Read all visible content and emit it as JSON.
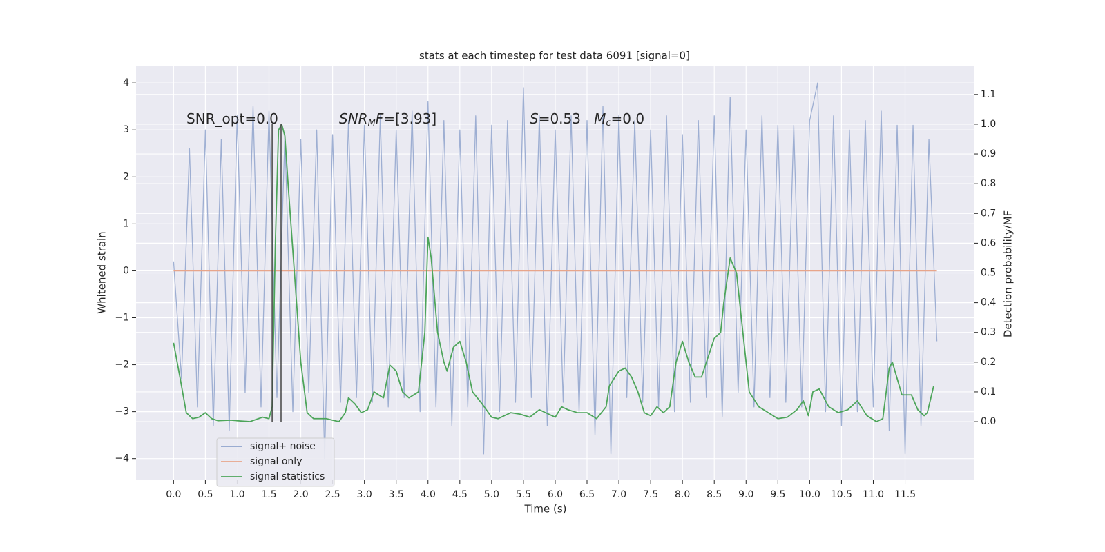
{
  "chart_data": {
    "type": "line",
    "title": "stats at each timestep for test data 6091 [signal=0]",
    "xlabel": "Time (s)",
    "ylabel": "Whitened strain",
    "y2label": "Detection probability/MF",
    "xlim": [
      -0.59,
      12.58
    ],
    "ylim": [
      -4.46,
      4.37
    ],
    "y2lim": [
      -0.197,
      1.197
    ],
    "grid": true,
    "background": "#eaeaf2",
    "legend": "lower left",
    "xticks": [
      {
        "value": 0.0,
        "label": "0.0"
      },
      {
        "value": 0.5,
        "label": "0.5"
      },
      {
        "value": 1.0,
        "label": "1.0"
      },
      {
        "value": 1.5,
        "label": "1.5"
      },
      {
        "value": 2.0,
        "label": "2.0"
      },
      {
        "value": 2.5,
        "label": "2.5"
      },
      {
        "value": 3.0,
        "label": "3.0"
      },
      {
        "value": 3.5,
        "label": "3.5"
      },
      {
        "value": 4.0,
        "label": "4.0"
      },
      {
        "value": 4.5,
        "label": "4.5"
      },
      {
        "value": 5.0,
        "label": "5.0"
      },
      {
        "value": 5.5,
        "label": "5.5"
      },
      {
        "value": 6.0,
        "label": "6.0"
      },
      {
        "value": 6.5,
        "label": "6.5"
      },
      {
        "value": 7.0,
        "label": "7.0"
      },
      {
        "value": 7.5,
        "label": "7.5"
      },
      {
        "value": 8.0,
        "label": "8.0"
      },
      {
        "value": 8.5,
        "label": "8.5"
      },
      {
        "value": 9.0,
        "label": "9.0"
      },
      {
        "value": 9.5,
        "label": "9.5"
      },
      {
        "value": 10.0,
        "label": "10.0"
      },
      {
        "value": 10.5,
        "label": "10.5"
      },
      {
        "value": 11.0,
        "label": "11.0"
      },
      {
        "value": 11.5,
        "label": "11.5"
      }
    ],
    "yticks": [
      {
        "value": -4,
        "label": "−4"
      },
      {
        "value": -3,
        "label": "−3"
      },
      {
        "value": -2,
        "label": "−2"
      },
      {
        "value": -1,
        "label": "−1"
      },
      0,
      1,
      2,
      3,
      4
    ],
    "y2ticks": [
      {
        "value": 0.0,
        "label": "0.0"
      },
      {
        "value": 0.1,
        "label": "0.1"
      },
      {
        "value": 0.2,
        "label": "0.2"
      },
      {
        "value": 0.3,
        "label": "0.3"
      },
      {
        "value": 0.4,
        "label": "0.4"
      },
      {
        "value": 0.5,
        "label": "0.5"
      },
      {
        "value": 0.6,
        "label": "0.6"
      },
      {
        "value": 0.7,
        "label": "0.7"
      },
      {
        "value": 0.8,
        "label": "0.8"
      },
      {
        "value": 0.9,
        "label": "0.9"
      },
      {
        "value": 1.0,
        "label": "1.0"
      },
      {
        "value": 1.1,
        "label": "1.1"
      }
    ],
    "series": [
      {
        "name": "signal+ noise",
        "color": "#8fa3cc",
        "width": 1.3,
        "x": [
          0,
          0.125,
          0.25,
          0.375,
          0.5,
          0.625,
          0.75,
          0.875,
          1,
          1.125,
          1.25,
          1.375,
          1.5,
          1.625,
          1.75,
          1.875,
          2,
          2.125,
          2.25,
          2.375,
          2.5,
          2.625,
          2.75,
          2.875,
          3,
          3.125,
          3.25,
          3.375,
          3.5,
          3.625,
          3.75,
          3.875,
          4,
          4.125,
          4.25,
          4.375,
          4.5,
          4.625,
          4.75,
          4.875,
          5,
          5.125,
          5.25,
          5.375,
          5.5,
          5.625,
          5.75,
          5.875,
          6,
          6.125,
          6.25,
          6.375,
          6.5,
          6.625,
          6.75,
          6.875,
          7,
          7.125,
          7.25,
          7.375,
          7.5,
          7.625,
          7.75,
          7.875,
          8,
          8.125,
          8.25,
          8.375,
          8.5,
          8.625,
          8.75,
          8.875,
          9,
          9.125,
          9.25,
          9.375,
          9.5,
          9.625,
          9.75,
          9.875,
          10,
          10.125,
          10.25,
          10.375,
          10.5,
          10.625,
          10.75,
          10.875,
          11,
          11.125,
          11.25,
          11.375,
          11.5,
          11.625,
          11.75,
          11.875,
          12
        ],
        "values": [
          0.2,
          -2.3,
          2.6,
          -2.9,
          3.0,
          -3.3,
          2.8,
          -3.4,
          3.3,
          -2.6,
          3.5,
          -2.9,
          3.4,
          -2.7,
          2.9,
          -3.0,
          2.8,
          -2.6,
          3.0,
          -4.0,
          2.9,
          -2.8,
          3.2,
          -2.7,
          3.1,
          -2.8,
          3.3,
          -2.9,
          3.0,
          -2.7,
          3.4,
          -3.0,
          3.6,
          -2.9,
          3.2,
          -3.3,
          3.0,
          -2.9,
          3.3,
          -3.9,
          3.1,
          -3.0,
          3.2,
          -2.8,
          3.9,
          -2.7,
          3.3,
          -3.3,
          3.0,
          -2.8,
          3.3,
          -3.0,
          3.2,
          -3.5,
          3.5,
          -3.9,
          3.3,
          -2.7,
          3.2,
          -2.8,
          3.0,
          -2.9,
          3.3,
          -3.0,
          2.9,
          -2.8,
          3.2,
          -2.7,
          3.3,
          -3.1,
          3.7,
          -2.6,
          3.0,
          -2.9,
          3.3,
          -2.7,
          3.1,
          -2.8,
          3.1,
          -2.9,
          3.2,
          4.0,
          -3.0,
          3.3,
          -3.3,
          3.0,
          -3.0,
          3.2,
          -2.9,
          3.4,
          -3.4,
          3.1,
          -3.9,
          3.1,
          -3.3,
          2.8,
          -1.5
        ]
      },
      {
        "name": "signal only",
        "color": "#e8a58a",
        "width": 1.5,
        "x": [
          0,
          12
        ],
        "values": [
          0,
          0
        ]
      },
      {
        "name": "signal statistics",
        "color": "#4da55a",
        "width": 1.8,
        "axis": "y2",
        "x": [
          0,
          0.1,
          0.2,
          0.3,
          0.4,
          0.5,
          0.6,
          0.7,
          0.9,
          1.0,
          1.2,
          1.4,
          1.5,
          1.55,
          1.6,
          1.65,
          1.7,
          1.75,
          1.8,
          1.9,
          2.0,
          2.1,
          2.2,
          2.4,
          2.6,
          2.7,
          2.75,
          2.85,
          2.95,
          3.05,
          3.15,
          3.3,
          3.4,
          3.5,
          3.6,
          3.7,
          3.85,
          3.95,
          4.0,
          4.05,
          4.15,
          4.25,
          4.3,
          4.4,
          4.5,
          4.6,
          4.7,
          4.85,
          5.0,
          5.1,
          5.2,
          5.3,
          5.45,
          5.6,
          5.75,
          5.85,
          6.0,
          6.1,
          6.2,
          6.35,
          6.5,
          6.65,
          6.8,
          6.85,
          7.0,
          7.1,
          7.2,
          7.3,
          7.4,
          7.5,
          7.6,
          7.7,
          7.8,
          7.9,
          8.0,
          8.1,
          8.2,
          8.3,
          8.5,
          8.6,
          8.65,
          8.75,
          8.85,
          8.95,
          9.05,
          9.2,
          9.35,
          9.5,
          9.65,
          9.8,
          9.9,
          9.98,
          10.05,
          10.15,
          10.3,
          10.45,
          10.6,
          10.75,
          10.9,
          11.05,
          11.15,
          11.25,
          11.3,
          11.45,
          11.6,
          11.7,
          11.8,
          11.85,
          11.95
        ],
        "values": [
          0.265,
          0.15,
          0.03,
          0.01,
          0.015,
          0.03,
          0.01,
          0.003,
          0.005,
          0.003,
          0.0,
          0.015,
          0.01,
          0.05,
          0.6,
          0.98,
          1.0,
          0.96,
          0.8,
          0.5,
          0.2,
          0.03,
          0.01,
          0.01,
          0.0,
          0.03,
          0.08,
          0.06,
          0.03,
          0.04,
          0.1,
          0.08,
          0.19,
          0.17,
          0.1,
          0.08,
          0.1,
          0.3,
          0.62,
          0.55,
          0.3,
          0.2,
          0.17,
          0.25,
          0.27,
          0.2,
          0.1,
          0.06,
          0.015,
          0.01,
          0.02,
          0.03,
          0.025,
          0.015,
          0.04,
          0.03,
          0.015,
          0.05,
          0.04,
          0.03,
          0.03,
          0.01,
          0.05,
          0.12,
          0.17,
          0.18,
          0.15,
          0.1,
          0.03,
          0.02,
          0.05,
          0.03,
          0.05,
          0.2,
          0.27,
          0.2,
          0.15,
          0.15,
          0.28,
          0.3,
          0.4,
          0.55,
          0.5,
          0.3,
          0.1,
          0.05,
          0.03,
          0.01,
          0.015,
          0.04,
          0.07,
          0.02,
          0.1,
          0.11,
          0.05,
          0.03,
          0.04,
          0.07,
          0.02,
          0.0,
          0.01,
          0.18,
          0.2,
          0.09,
          0.09,
          0.04,
          0.02,
          0.03,
          0.12
        ]
      }
    ],
    "vlines": [
      {
        "x": 1.55,
        "ymin": 0,
        "ymax": 1,
        "color": "#444444"
      },
      {
        "x": 1.69,
        "ymin": 0,
        "ymax": 1,
        "color": "#444444"
      }
    ],
    "annotations": [
      {
        "segments": [
          {
            "text": "SNR_opt=0.0",
            "style": "normal"
          }
        ]
      },
      {
        "segments": [
          {
            "text": "SNR",
            "style": "italic"
          },
          {
            "text": "M",
            "style": "italic-sub"
          },
          {
            "text": "F",
            "style": "italic"
          },
          {
            "text": "=[3.93]",
            "style": "normal"
          }
        ]
      },
      {
        "segments": [
          {
            "text": "S",
            "style": "italic"
          },
          {
            "text": "=0.53   ",
            "style": "normal"
          },
          {
            "text": "M",
            "style": "italic"
          },
          {
            "text": "c",
            "style": "italic-sub"
          },
          {
            "text": "=0.0",
            "style": "normal"
          }
        ]
      }
    ]
  }
}
